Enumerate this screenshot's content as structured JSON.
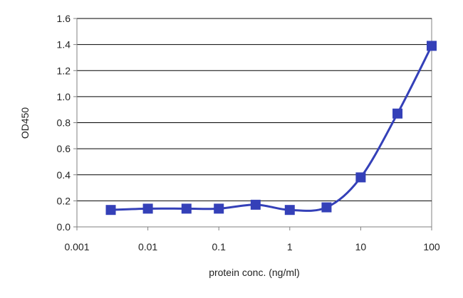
{
  "chart_data": {
    "type": "line",
    "title": "",
    "xlabel": "protein conc. (ng/ml)",
    "ylabel": "OD450",
    "x_scale": "log",
    "xlim": [
      0.001,
      100
    ],
    "ylim": [
      0,
      1.6
    ],
    "x_ticks": [
      0.001,
      0.01,
      0.1,
      1,
      10,
      100
    ],
    "x_tick_labels": [
      "0.001",
      "0.01",
      "0.1",
      "1",
      "10",
      "100"
    ],
    "y_ticks": [
      0,
      0.2,
      0.4,
      0.6,
      0.8,
      1.0,
      1.2,
      1.4,
      1.6
    ],
    "y_tick_labels": [
      "0.0",
      "0.2",
      "0.4",
      "0.6",
      "0.8",
      "1.0",
      "1.2",
      "1.4",
      "1.6"
    ],
    "grid": "horizontal",
    "legend": "none",
    "series": [
      {
        "color": "#3440b8",
        "marker": "square",
        "x": [
          0.003,
          0.01,
          0.035,
          0.1,
          0.33,
          1,
          3.3,
          10,
          33,
          100
        ],
        "y": [
          0.13,
          0.14,
          0.14,
          0.14,
          0.17,
          0.13,
          0.15,
          0.38,
          0.87,
          1.39
        ]
      }
    ]
  }
}
